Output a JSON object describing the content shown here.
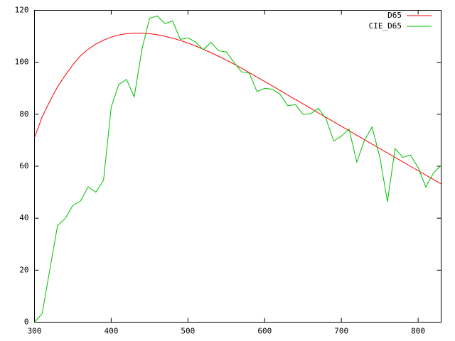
{
  "chart_data": {
    "type": "line",
    "x": [
      300,
      310,
      320,
      330,
      340,
      350,
      360,
      370,
      380,
      390,
      400,
      410,
      420,
      430,
      440,
      450,
      460,
      470,
      480,
      490,
      500,
      510,
      520,
      530,
      540,
      550,
      560,
      570,
      580,
      590,
      600,
      610,
      620,
      630,
      640,
      650,
      660,
      670,
      680,
      690,
      700,
      710,
      720,
      730,
      740,
      750,
      760,
      770,
      780,
      790,
      800,
      810,
      820,
      830
    ],
    "series": [
      {
        "name": "D65",
        "color": "#ff0000",
        "values": [
          71,
          79,
          85,
          90.5,
          95,
          99,
          102.5,
          105,
          107,
          108.5,
          109.7,
          110.5,
          111,
          111.2,
          111.2,
          111,
          110.6,
          110,
          109.3,
          108.4,
          107.4,
          106.3,
          105,
          103.7,
          102.3,
          100.8,
          99.3,
          97.7,
          96,
          94.3,
          92.6,
          90.9,
          89.2,
          87.4,
          85.7,
          84,
          82.3,
          80.5,
          78.8,
          77.1,
          75.4,
          73.7,
          71.9,
          70.2,
          68.5,
          66.8,
          65.1,
          63.4,
          61.7,
          60,
          58.3,
          56.6,
          54.9,
          53.2
        ]
      },
      {
        "name": "CIE_D65",
        "color": "#00c000",
        "values": [
          0.0,
          3.3,
          20.2,
          37.1,
          39.9,
          44.9,
          46.6,
          52.1,
          50.0,
          54.6,
          82.8,
          91.5,
          93.4,
          86.7,
          104.9,
          117.0,
          117.8,
          114.9,
          115.9,
          108.8,
          109.4,
          107.8,
          104.8,
          107.7,
          104.4,
          104.0,
          100.0,
          96.3,
          95.8,
          88.7,
          90.0,
          89.6,
          87.7,
          83.3,
          83.7,
          80.0,
          80.2,
          82.3,
          78.3,
          69.7,
          71.6,
          74.3,
          61.6,
          69.9,
          75.1,
          63.6,
          46.4,
          66.8,
          63.4,
          64.3,
          59.5,
          52.0,
          57.4,
          60.3
        ]
      }
    ],
    "xlim": [
      300,
      830
    ],
    "ylim": [
      0,
      120
    ],
    "xticks": [
      300,
      400,
      500,
      600,
      700,
      800
    ],
    "yticks": [
      0,
      20,
      40,
      60,
      80,
      100,
      120
    ],
    "legend": "top-right"
  }
}
